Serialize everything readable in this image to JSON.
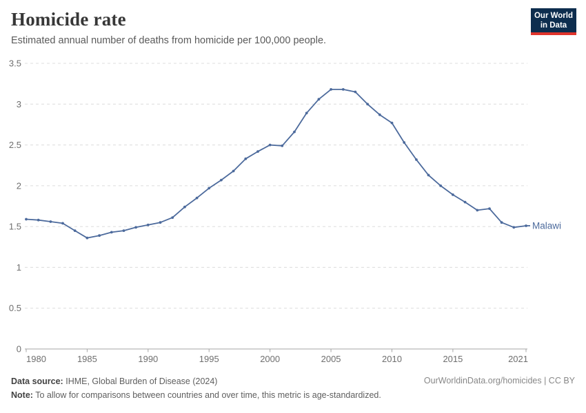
{
  "logo": {
    "line1": "Our World",
    "line2": "in Data",
    "bg_color": "#0d2d4e",
    "accent_color": "#e0342c"
  },
  "chart_data": {
    "type": "line",
    "title": "Homicide rate",
    "subtitle": "Estimated annual number of deaths from homicide per 100,000 people.",
    "xlim": [
      1980,
      2021
    ],
    "ylim": [
      0,
      3.5
    ],
    "x_ticks": [
      1980,
      1985,
      1990,
      1995,
      2000,
      2005,
      2010,
      2015,
      2021
    ],
    "y_ticks": [
      0,
      0.5,
      1,
      1.5,
      2,
      2.5,
      3,
      3.5
    ],
    "grid": "horizontal-dashed",
    "legend_position": "end-of-line-label",
    "x": [
      1980,
      1981,
      1982,
      1983,
      1984,
      1985,
      1986,
      1987,
      1988,
      1989,
      1990,
      1991,
      1992,
      1993,
      1994,
      1995,
      1996,
      1997,
      1998,
      1999,
      2000,
      2001,
      2002,
      2003,
      2004,
      2005,
      2006,
      2007,
      2008,
      2009,
      2010,
      2011,
      2012,
      2013,
      2014,
      2015,
      2016,
      2017,
      2018,
      2019,
      2020,
      2021
    ],
    "series": [
      {
        "name": "Malawi",
        "color": "#4c6a9c",
        "values": [
          1.59,
          1.58,
          1.56,
          1.54,
          1.45,
          1.36,
          1.39,
          1.43,
          1.45,
          1.49,
          1.52,
          1.55,
          1.61,
          1.74,
          1.85,
          1.97,
          2.07,
          2.18,
          2.33,
          2.42,
          2.5,
          2.49,
          2.66,
          2.89,
          3.06,
          3.18,
          3.18,
          3.15,
          3.0,
          2.87,
          2.77,
          2.53,
          2.32,
          2.13,
          2.0,
          1.89,
          1.8,
          1.7,
          1.72,
          1.55,
          1.49,
          1.51
        ]
      }
    ],
    "axis_color": "#a5a5a5",
    "grid_color": "#dcdcdc",
    "tick_label_color": "#6e6e6e"
  },
  "footer": {
    "source_label": "Data source:",
    "source_text": "IHME, Global Burden of Disease (2024)",
    "note_label": "Note:",
    "note_text": "To allow for comparisons between countries and over time, this metric is age-standardized.",
    "rights": "OurWorldinData.org/homicides | CC BY"
  }
}
